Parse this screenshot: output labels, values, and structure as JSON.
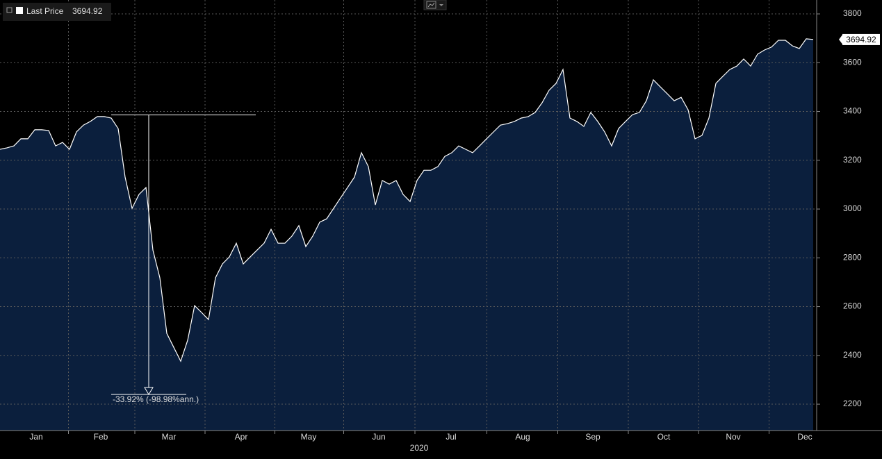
{
  "chart_data": {
    "type": "area",
    "xlabel": "2020",
    "xlim": [
      0,
      117.5
    ],
    "xticks": [
      {
        "value": 5.2,
        "label": "Jan"
      },
      {
        "value": 14.5,
        "label": "Feb"
      },
      {
        "value": 24.3,
        "label": "Mar"
      },
      {
        "value": 34.7,
        "label": "Apr"
      },
      {
        "value": 44.4,
        "label": "May"
      },
      {
        "value": 54.5,
        "label": "Jun"
      },
      {
        "value": 64.9,
        "label": "Jul"
      },
      {
        "value": 75.2,
        "label": "Aug"
      },
      {
        "value": 85.3,
        "label": "Sep"
      },
      {
        "value": 95.5,
        "label": "Oct"
      },
      {
        "value": 105.5,
        "label": "Nov"
      },
      {
        "value": 115.8,
        "label": "Dec"
      }
    ],
    "ylim": [
      2092,
      3857
    ],
    "yticks": [
      2200,
      2400,
      2600,
      2800,
      3000,
      3200,
      3400,
      3600,
      3800
    ],
    "grid": true,
    "series": [
      {
        "name": "Last Price",
        "color": "#ffffff",
        "fill": "#0b1f3d",
        "values": [
          3245,
          3251,
          3259,
          3288,
          3288,
          3325,
          3325,
          3322,
          3259,
          3273,
          3245,
          3316,
          3344,
          3359,
          3379,
          3379,
          3373,
          3330,
          3131,
          3003,
          3060,
          3088,
          2832,
          2718,
          2490,
          2433,
          2376,
          2462,
          2604,
          2576,
          2547,
          2718,
          2775,
          2804,
          2860,
          2775,
          2804,
          2832,
          2860,
          2917,
          2860,
          2860,
          2889,
          2932,
          2846,
          2889,
          2946,
          2960,
          3003,
          3046,
          3088,
          3131,
          3231,
          3174,
          3017,
          3117,
          3102,
          3117,
          3060,
          3031,
          3117,
          3159,
          3159,
          3174,
          3216,
          3231,
          3259,
          3245,
          3231,
          3259,
          3288,
          3316,
          3344,
          3350,
          3359,
          3373,
          3379,
          3396,
          3436,
          3487,
          3515,
          3572,
          3373,
          3359,
          3339,
          3396,
          3359,
          3316,
          3259,
          3330,
          3359,
          3387,
          3396,
          3444,
          3530,
          3501,
          3473,
          3444,
          3458,
          3407,
          3288,
          3302,
          3373,
          3515,
          3544,
          3572,
          3586,
          3615,
          3586,
          3635,
          3652,
          3664,
          3692,
          3692,
          3669,
          3658,
          3698,
          3694.92
        ]
      }
    ],
    "annotation": {
      "text": "-33.92% (-98.98%ann.)",
      "from": 3386,
      "to": 2240,
      "x": [
        16,
        26.8
      ]
    }
  }
}
